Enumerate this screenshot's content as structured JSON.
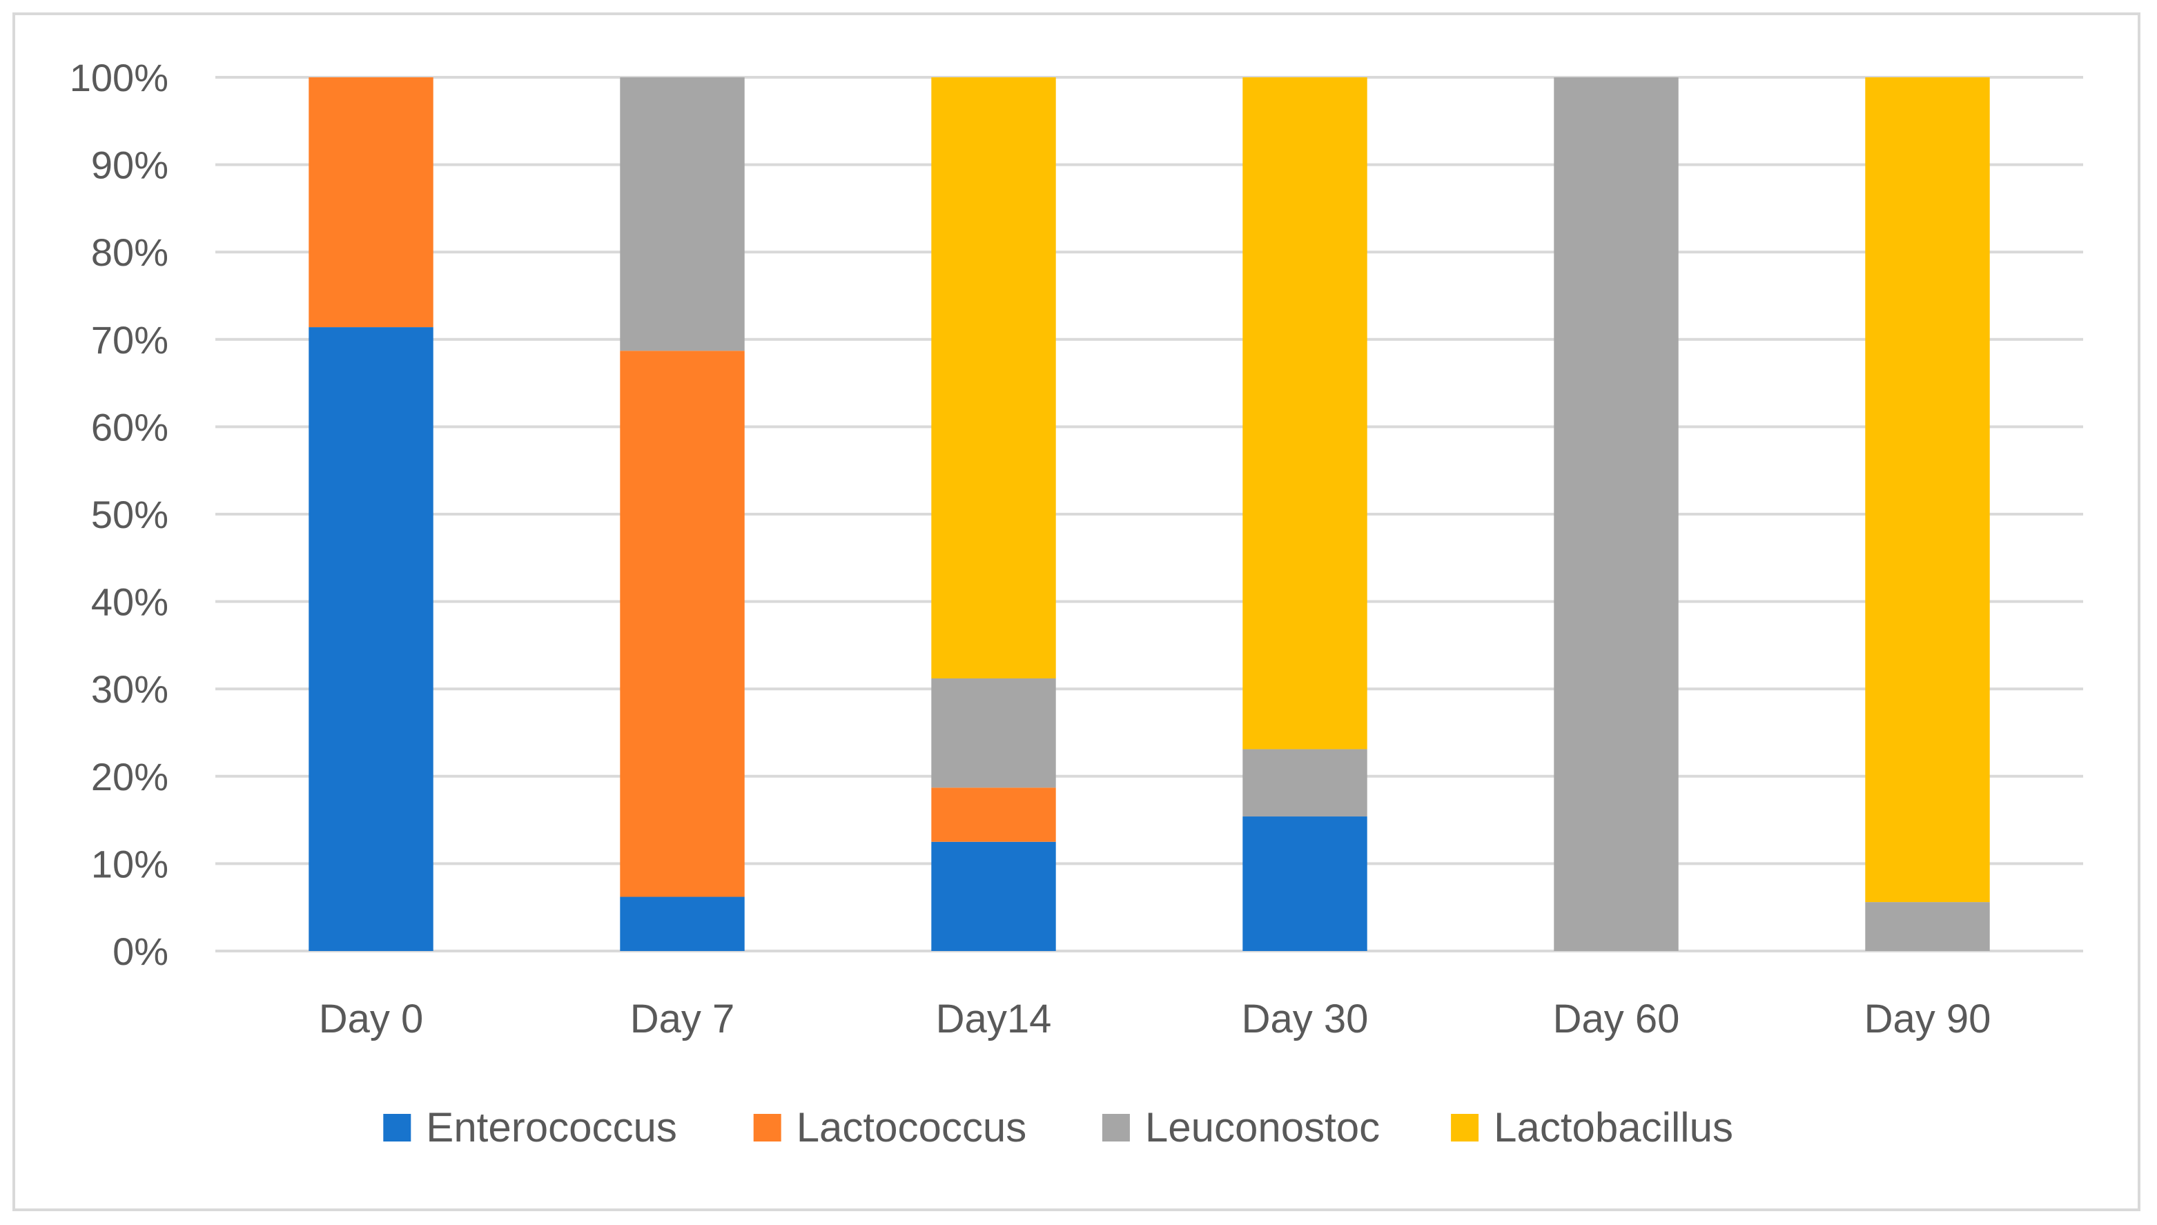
{
  "chart_data": {
    "type": "bar",
    "stacked": true,
    "title": "",
    "xlabel": "",
    "ylabel": "",
    "ylim": [
      0,
      100
    ],
    "y_ticks": [
      "0%",
      "10%",
      "20%",
      "30%",
      "40%",
      "50%",
      "60%",
      "70%",
      "80%",
      "90%",
      "100%"
    ],
    "categories": [
      "Day 0",
      "Day 7",
      "Day14",
      "Day 30",
      "Day 60",
      "Day 90"
    ],
    "series": [
      {
        "name": "Enterococcus",
        "color": "#1874CD",
        "values": [
          71.4,
          6.2,
          12.5,
          15.4,
          0,
          0
        ]
      },
      {
        "name": "Lactococcus",
        "color": "#FF7F27",
        "values": [
          28.6,
          62.5,
          6.2,
          0,
          0,
          0
        ]
      },
      {
        "name": "Leuconostoc",
        "color": "#A6A6A6",
        "values": [
          0,
          31.3,
          12.5,
          7.7,
          100,
          5.6
        ]
      },
      {
        "name": "Lactobacillus",
        "color": "#FFC000",
        "values": [
          0,
          0,
          68.8,
          76.9,
          0,
          94.4
        ]
      }
    ],
    "grid": true,
    "legend_position": "bottom"
  }
}
